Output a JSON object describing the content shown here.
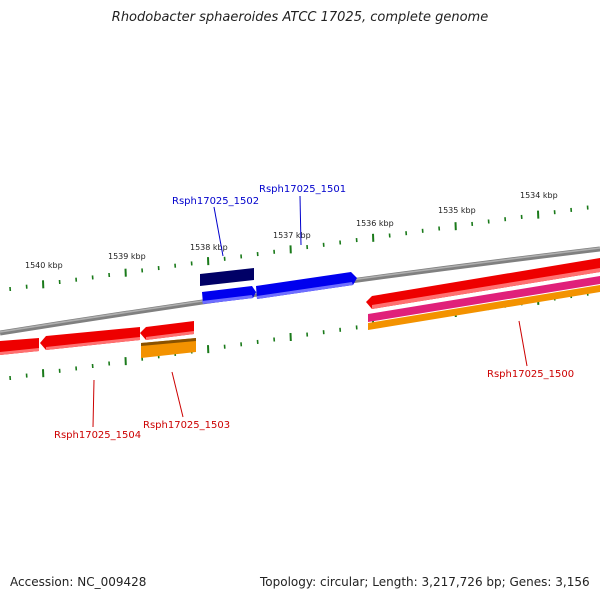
{
  "title": "Rhodobacter sphaeroides ATCC 17025, complete genome",
  "footer": {
    "accession": "Accession: NC_009428",
    "summary": "Topology: circular; Length: 3,217,726 bp; Genes: 3,156"
  },
  "ticks": [
    "1534 kbp",
    "1535 kbp",
    "1536 kbp",
    "1537 kbp",
    "1538 kbp",
    "1539 kbp",
    "1540 kbp"
  ],
  "genes": [
    {
      "label": "Rsph17025_1500",
      "color": "#cc0000"
    },
    {
      "label": "Rsph17025_1501",
      "color": "#0000cc"
    },
    {
      "label": "Rsph17025_1502",
      "color": "#0000cc"
    },
    {
      "label": "Rsph17025_1503",
      "color": "#cc0000"
    },
    {
      "label": "Rsph17025_1504",
      "color": "#cc0000"
    }
  ],
  "colors": {
    "backbone": "#808080",
    "tick": "#1a7a1a",
    "forward": "#0000ee",
    "forward_dark": "#000066",
    "reverse": "#ee0000",
    "magenta": "#e0207a",
    "orange": "#f39200"
  }
}
